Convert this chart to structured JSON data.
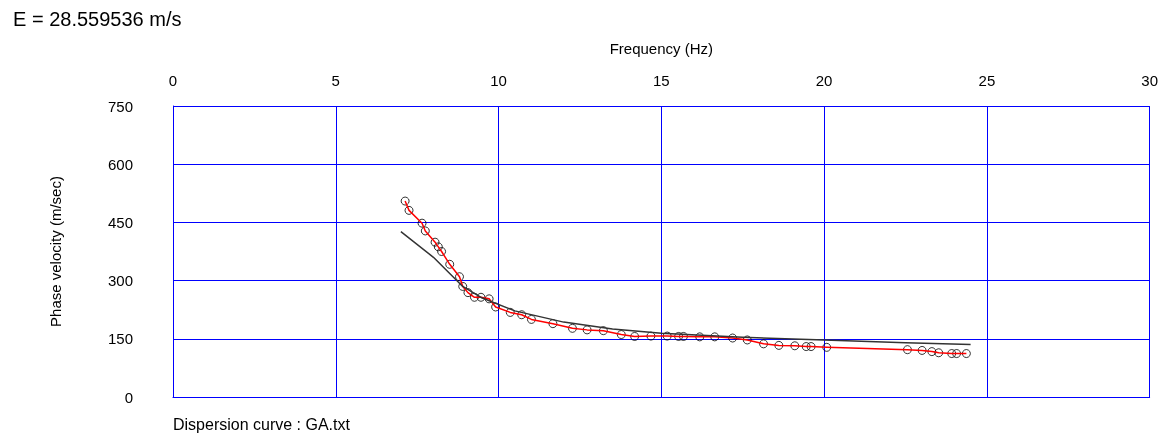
{
  "chart_data": {
    "type": "scatter",
    "title": "E = 28.559536 m/s",
    "xlabel": "Frequency (Hz)",
    "ylabel": "Phase velocity (m/sec)",
    "annotations": [
      "Dispersion curve : GA.txt"
    ],
    "xlim": [
      0,
      30
    ],
    "xticks": [
      0,
      5,
      10,
      15,
      20,
      25,
      30
    ],
    "ylim": [
      0,
      750
    ],
    "yticks": [
      0,
      150,
      300,
      450,
      600,
      750
    ],
    "grid": true,
    "series": [
      {
        "marker": "circle",
        "color": "#000000",
        "x": [
          7.13,
          7.25,
          7.65,
          7.75,
          8.05,
          8.15,
          8.25,
          8.5,
          8.8,
          8.9,
          9.06,
          9.26,
          9.46,
          9.71,
          9.91,
          10.36,
          10.71,
          11.01,
          11.67,
          12.27,
          12.72,
          13.22,
          13.77,
          14.18,
          14.68,
          15.18,
          15.53,
          15.68,
          16.18,
          16.64,
          17.19,
          17.64,
          18.14,
          18.61,
          19.1,
          19.45,
          19.6,
          20.08,
          22.56,
          23.01,
          23.31,
          23.52,
          23.92,
          24.07,
          24.37
        ],
        "values": [
          505,
          481,
          448,
          428,
          399,
          387,
          375,
          342,
          310,
          285,
          269,
          257,
          257,
          253,
          232,
          218,
          212,
          200,
          189,
          177,
          173,
          171,
          161,
          156,
          157,
          157,
          156,
          156,
          155,
          155,
          152,
          147,
          137,
          133,
          132,
          130,
          130,
          128,
          122,
          120,
          117,
          114,
          112,
          112,
          112
        ]
      },
      {
        "type": "line",
        "marker": "none",
        "line_style": "solid",
        "color": "#ff0000",
        "x": [
          7.13,
          7.25,
          7.65,
          7.75,
          8.05,
          8.15,
          8.25,
          8.5,
          8.8,
          8.9,
          9.06,
          9.26,
          9.46,
          9.71,
          9.91,
          10.36,
          10.71,
          11.01,
          11.67,
          12.27,
          12.72,
          13.22,
          13.77,
          14.18,
          14.68,
          15.18,
          15.53,
          15.68,
          16.18,
          16.64,
          17.19,
          17.64,
          18.14,
          18.61,
          19.1,
          19.45,
          19.6,
          20.08,
          22.56,
          23.01,
          23.31,
          23.52,
          23.92,
          24.07,
          24.37
        ],
        "values": [
          505,
          481,
          448,
          428,
          399,
          387,
          375,
          342,
          310,
          285,
          269,
          257,
          257,
          253,
          232,
          218,
          212,
          200,
          189,
          177,
          173,
          171,
          161,
          156,
          157,
          157,
          156,
          156,
          155,
          155,
          152,
          147,
          137,
          133,
          132,
          130,
          130,
          128,
          122,
          120,
          117,
          114,
          112,
          112,
          112
        ]
      },
      {
        "type": "line",
        "marker": "none",
        "line_style": "solid",
        "color": "#333333",
        "x": [
          7.0,
          8.0,
          8.9,
          9.5,
          10.5,
          12.0,
          13.5,
          15.0,
          17.5,
          20.0,
          22.5,
          24.5
        ],
        "values": [
          426,
          360,
          285,
          255,
          222,
          193,
          175,
          164,
          154,
          147,
          140,
          135
        ]
      }
    ]
  }
}
